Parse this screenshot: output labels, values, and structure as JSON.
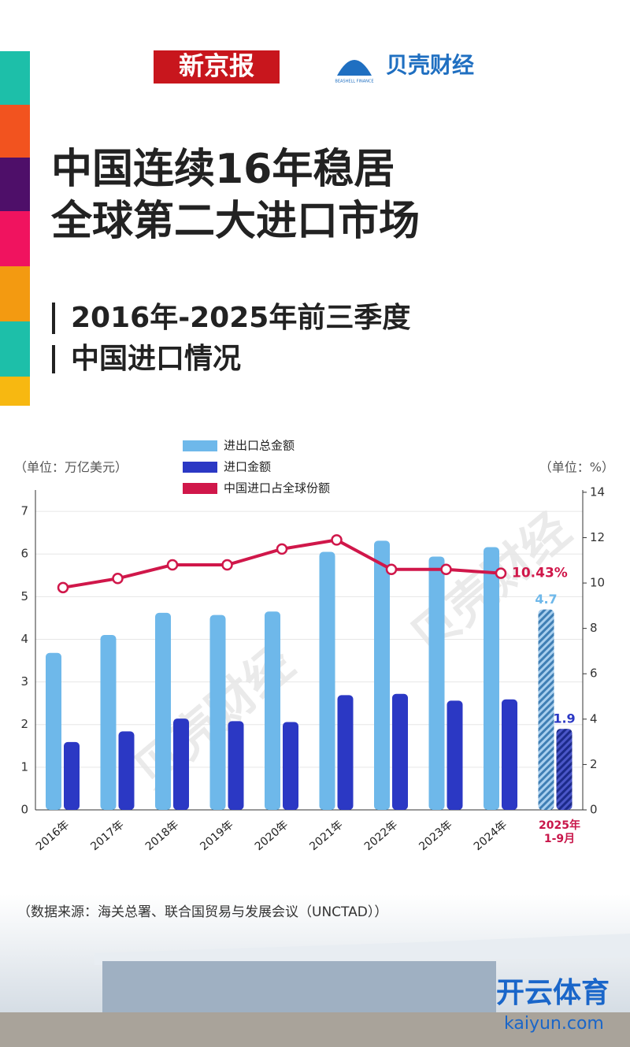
{
  "header": {
    "logo1": "新京报",
    "logo2": "贝壳财经",
    "logo2_sub": "BEASHELL FINANCE"
  },
  "title": [
    "中国连续16年稳居",
    "全球第二大进口市场"
  ],
  "subtitle": [
    "2016年-2025年前三季度",
    "中国进口情况"
  ],
  "source": "（数据来源：海关总署、联合国贸易与发展会议（UNCTAD））",
  "watermarks": [
    "贝壳财经",
    "开云体育",
    "kaiyun.com"
  ],
  "chart_data": {
    "type": "bar",
    "y_label": "（单位：万亿美元）",
    "y2_label": "（单位：%）",
    "categories": [
      "2016年",
      "2017年",
      "2018年",
      "2019年",
      "2020年",
      "2021年",
      "2022年",
      "2023年",
      "2024年",
      "2025年\n1-9月"
    ],
    "series": [
      {
        "name": "进出口总金额",
        "color": "#6eb8ea",
        "values": [
          3.68,
          4.1,
          4.62,
          4.57,
          4.65,
          6.05,
          6.31,
          5.94,
          6.16,
          4.7
        ]
      },
      {
        "name": "进口金额",
        "color": "#2b38c4",
        "values": [
          1.59,
          1.84,
          2.14,
          2.08,
          2.06,
          2.69,
          2.72,
          2.56,
          2.59,
          1.9
        ]
      },
      {
        "name": "中国进口占全球份额",
        "color": "#d0174a",
        "type": "line",
        "axis": "y2",
        "values": [
          9.8,
          10.2,
          10.8,
          10.8,
          11.5,
          11.9,
          10.6,
          10.6,
          10.43,
          null
        ],
        "value_labels": [
          null,
          null,
          null,
          null,
          null,
          null,
          null,
          null,
          "10.43%",
          null
        ]
      }
    ],
    "ylim": [
      0,
      7.5
    ],
    "yticks": [
      0,
      1,
      2,
      3,
      4,
      5,
      6,
      7
    ],
    "y2lim": [
      0,
      14.1
    ],
    "y2ticks": [
      0,
      2,
      4,
      6,
      8,
      10,
      12,
      14
    ],
    "grid": true,
    "hatch_last": true
  }
}
